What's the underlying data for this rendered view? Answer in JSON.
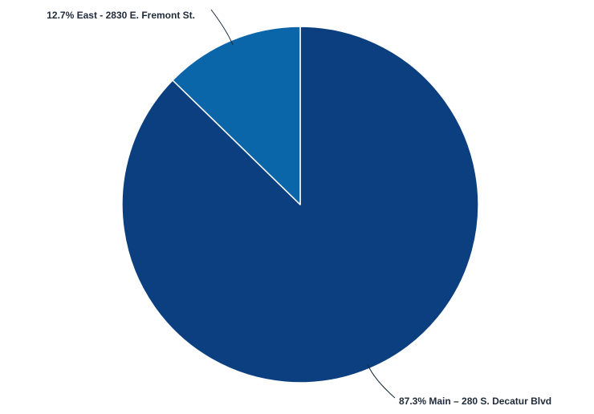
{
  "chart_data": {
    "type": "pie",
    "title": "",
    "start_angle_deg": 0,
    "direction": "clockwise",
    "slices": [
      {
        "label": "87.3% Main – 280 S. Decatur Blvd",
        "value": 87.3,
        "color": "#0b3f80"
      },
      {
        "label": "12.7% East - 2830 E. Fremont St.",
        "value": 12.7,
        "color": "#0a66a8"
      }
    ]
  }
}
